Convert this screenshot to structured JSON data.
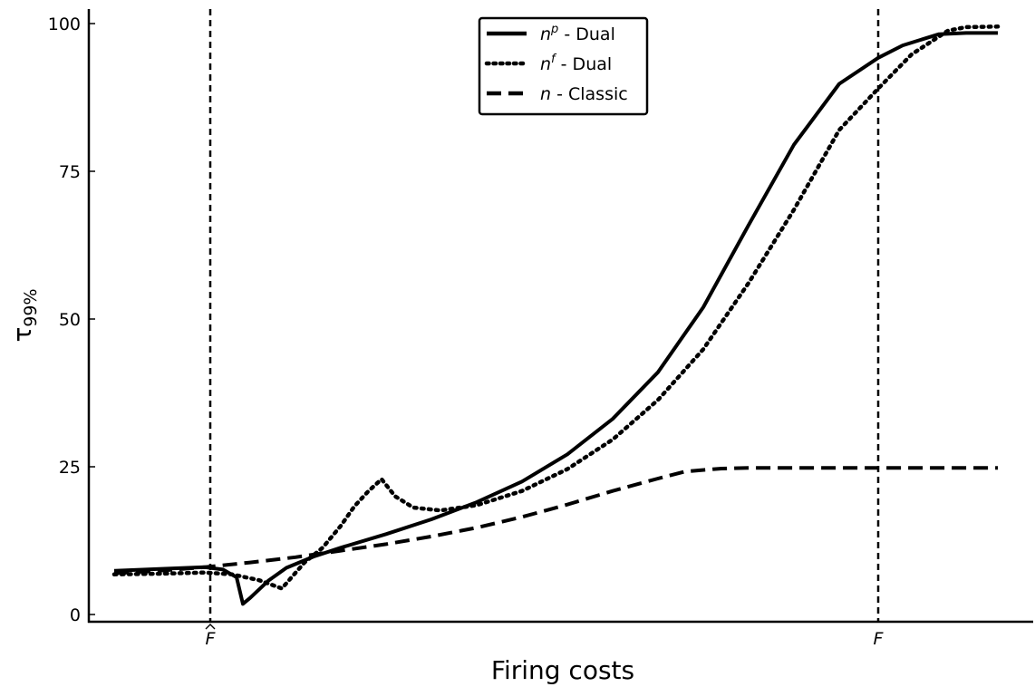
{
  "chart_data": {
    "type": "line",
    "title": "",
    "xlabel": "Firing costs",
    "ylabel": "τ",
    "ylabel_subscript": "99%",
    "xlim": [
      0,
      100
    ],
    "ylim": [
      -1.2,
      102.7
    ],
    "yticks": [
      0,
      25,
      50,
      75,
      100
    ],
    "grid": false,
    "legend_position": "top-center",
    "vertical_lines": [
      {
        "x": 10.6,
        "label": "F",
        "label_accent": "hat"
      },
      {
        "x": 84.3,
        "label": "F",
        "label_accent": ""
      }
    ],
    "series": [
      {
        "name": "n",
        "name_superscript": "p",
        "name_suffix": " - Dual",
        "style": "solid",
        "points": [
          [
            0,
            7.4
          ],
          [
            5,
            7.7
          ],
          [
            10,
            8.0
          ],
          [
            12,
            7.6
          ],
          [
            13.5,
            6.3
          ],
          [
            14.2,
            1.8
          ],
          [
            15,
            2.8
          ],
          [
            17,
            5.7
          ],
          [
            19,
            7.9
          ],
          [
            22,
            9.8
          ],
          [
            25,
            11.3
          ],
          [
            30,
            13.6
          ],
          [
            35,
            16.1
          ],
          [
            40,
            19.0
          ],
          [
            45,
            22.5
          ],
          [
            50,
            27.1
          ],
          [
            55,
            33.1
          ],
          [
            60,
            41.0
          ],
          [
            65,
            52.0
          ],
          [
            70,
            65.9
          ],
          [
            75,
            79.5
          ],
          [
            80,
            89.8
          ],
          [
            84.3,
            94.2
          ],
          [
            87,
            96.3
          ],
          [
            91,
            98.2
          ],
          [
            94,
            98.4
          ],
          [
            97.5,
            98.4
          ]
        ]
      },
      {
        "name": "n",
        "name_superscript": "f",
        "name_suffix": " - Dual",
        "style": "dotted",
        "points": [
          [
            0,
            6.8
          ],
          [
            5,
            6.9
          ],
          [
            10,
            7.1
          ],
          [
            13,
            6.8
          ],
          [
            16,
            5.8
          ],
          [
            18.5,
            4.4
          ],
          [
            21,
            8.8
          ],
          [
            23,
            11.3
          ],
          [
            25,
            15.0
          ],
          [
            26.5,
            18.3
          ],
          [
            28,
            20.8
          ],
          [
            29.5,
            22.9
          ],
          [
            31,
            20.0
          ],
          [
            33,
            18.1
          ],
          [
            36,
            17.6
          ],
          [
            40,
            18.5
          ],
          [
            45,
            20.9
          ],
          [
            50,
            24.6
          ],
          [
            55,
            29.6
          ],
          [
            60,
            36.3
          ],
          [
            65,
            44.9
          ],
          [
            70,
            56.1
          ],
          [
            75,
            68.5
          ],
          [
            80,
            82.0
          ],
          [
            84.3,
            89.0
          ],
          [
            88,
            94.8
          ],
          [
            92,
            98.8
          ],
          [
            94,
            99.4
          ],
          [
            97.5,
            99.5
          ]
        ]
      },
      {
        "name": "n",
        "name_superscript": "",
        "name_suffix": " - Classic",
        "style": "dashed",
        "points": [
          [
            0,
            7.0
          ],
          [
            5,
            7.4
          ],
          [
            10,
            8.0
          ],
          [
            15,
            8.8
          ],
          [
            20,
            9.7
          ],
          [
            25,
            10.8
          ],
          [
            30,
            11.9
          ],
          [
            35,
            13.2
          ],
          [
            40,
            14.7
          ],
          [
            45,
            16.5
          ],
          [
            50,
            18.6
          ],
          [
            55,
            20.9
          ],
          [
            60,
            23.0
          ],
          [
            63,
            24.2
          ],
          [
            67,
            24.7
          ],
          [
            70,
            24.8
          ],
          [
            75,
            24.8
          ],
          [
            80,
            24.8
          ],
          [
            84.3,
            24.8
          ],
          [
            90,
            24.8
          ],
          [
            97.5,
            24.8
          ]
        ]
      }
    ]
  }
}
